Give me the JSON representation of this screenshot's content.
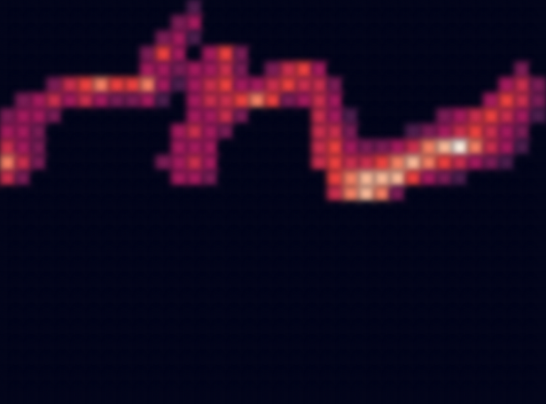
{
  "chart_data": {
    "type": "heatmap",
    "x": [
      0,
      1,
      2,
      3,
      4,
      5,
      6,
      7,
      8,
      9,
      10,
      11,
      12,
      13,
      14,
      15,
      16,
      17,
      18,
      19,
      20,
      21,
      22,
      23,
      24,
      25,
      26,
      27,
      28,
      29,
      30,
      31,
      32,
      33,
      34
    ],
    "y": [
      25,
      24,
      23,
      22,
      21,
      20,
      19,
      18,
      17,
      16,
      15,
      14,
      13,
      12,
      11,
      10,
      9,
      8,
      7,
      6,
      5,
      4,
      3,
      2,
      1,
      0
    ],
    "z": [
      [
        0,
        0,
        0,
        0,
        0,
        0,
        0,
        0,
        0,
        0,
        0,
        0,
        3,
        0,
        0,
        0,
        0,
        0,
        0,
        0,
        0,
        0,
        0,
        0,
        0,
        0,
        0,
        0,
        0,
        0,
        0,
        0,
        0,
        0,
        0
      ],
      [
        0,
        0,
        0,
        0,
        0,
        0,
        0,
        0,
        0,
        0,
        0,
        4,
        5,
        0,
        0,
        0,
        0,
        0,
        0,
        0,
        0,
        0,
        0,
        0,
        0,
        0,
        0,
        0,
        0,
        0,
        0,
        0,
        0,
        0,
        0
      ],
      [
        0,
        0,
        0,
        0,
        0,
        0,
        0,
        0,
        0,
        0,
        4,
        5,
        3,
        0,
        0,
        0,
        0,
        0,
        0,
        0,
        0,
        0,
        0,
        0,
        0,
        0,
        0,
        0,
        0,
        0,
        0,
        0,
        0,
        0,
        0
      ],
      [
        0,
        0,
        0,
        0,
        0,
        0,
        0,
        0,
        0,
        4,
        7,
        5,
        0,
        5,
        7,
        4,
        0,
        0,
        0,
        0,
        0,
        0,
        0,
        0,
        0,
        0,
        0,
        0,
        0,
        0,
        0,
        0,
        0,
        0,
        0
      ],
      [
        0,
        0,
        0,
        0,
        0,
        0,
        0,
        0,
        0,
        5,
        5,
        4,
        5,
        5,
        6,
        4,
        0,
        4,
        6,
        7,
        5,
        0,
        0,
        0,
        0,
        0,
        0,
        0,
        0,
        0,
        0,
        0,
        0,
        4,
        0
      ],
      [
        0,
        0,
        0,
        4,
        6,
        7,
        8,
        7,
        7,
        8,
        5,
        3,
        5,
        6,
        7,
        5,
        5,
        6,
        7,
        6,
        6,
        4,
        0,
        0,
        0,
        0,
        0,
        0,
        0,
        0,
        0,
        0,
        5,
        6,
        4
      ],
      [
        0,
        4,
        5,
        6,
        5,
        6,
        5,
        4,
        4,
        5,
        3,
        0,
        5,
        6,
        6,
        7,
        8,
        7,
        4,
        5,
        6,
        5,
        0,
        0,
        0,
        0,
        0,
        0,
        0,
        0,
        0,
        5,
        7,
        6,
        4
      ],
      [
        4,
        5,
        5,
        4,
        0,
        0,
        0,
        0,
        0,
        0,
        0,
        0,
        5,
        5,
        6,
        4,
        0,
        0,
        0,
        0,
        6,
        5,
        3,
        0,
        0,
        0,
        0,
        0,
        4,
        5,
        6,
        7,
        6,
        5,
        3
      ],
      [
        5,
        5,
        4,
        0,
        0,
        0,
        0,
        0,
        0,
        0,
        0,
        5,
        6,
        5,
        4,
        0,
        0,
        0,
        0,
        0,
        6,
        6,
        4,
        0,
        0,
        0,
        3,
        4,
        5,
        6,
        7,
        6,
        5,
        4,
        0
      ],
      [
        6,
        5,
        4,
        0,
        0,
        0,
        0,
        0,
        0,
        0,
        0,
        5,
        5,
        5,
        0,
        0,
        0,
        0,
        0,
        0,
        6,
        7,
        5,
        4,
        4,
        5,
        6,
        8,
        9,
        10,
        8,
        6,
        5,
        3,
        0
      ],
      [
        8,
        6,
        4,
        0,
        0,
        0,
        0,
        0,
        0,
        0,
        4,
        5,
        6,
        5,
        0,
        0,
        0,
        0,
        0,
        0,
        6,
        7,
        6,
        6,
        7,
        8,
        9,
        8,
        7,
        6,
        5,
        4,
        3,
        0,
        0
      ],
      [
        6,
        4,
        0,
        0,
        0,
        0,
        0,
        0,
        0,
        0,
        0,
        5,
        5,
        4,
        0,
        0,
        0,
        0,
        0,
        0,
        0,
        7,
        8,
        9,
        9,
        9,
        7,
        5,
        4,
        3,
        0,
        0,
        0,
        0,
        0
      ],
      [
        0,
        0,
        0,
        0,
        0,
        0,
        0,
        0,
        0,
        0,
        0,
        0,
        0,
        0,
        0,
        0,
        0,
        0,
        0,
        0,
        0,
        6,
        8,
        9,
        8,
        4,
        0,
        0,
        0,
        0,
        0,
        0,
        0,
        0,
        0
      ],
      [
        0,
        0,
        0,
        0,
        0,
        0,
        0,
        0,
        0,
        0,
        0,
        0,
        0,
        0,
        0,
        0,
        0,
        0,
        0,
        0,
        0,
        0,
        0,
        0,
        0,
        0,
        0,
        0,
        0,
        0,
        0,
        0,
        0,
        0,
        0
      ],
      [
        0,
        0,
        0,
        0,
        0,
        0,
        0,
        0,
        0,
        0,
        0,
        0,
        0,
        0,
        0,
        0,
        0,
        0,
        0,
        0,
        0,
        0,
        0,
        0,
        0,
        0,
        0,
        0,
        0,
        0,
        0,
        0,
        0,
        0,
        0
      ],
      [
        0,
        0,
        0,
        0,
        0,
        0,
        0,
        0,
        0,
        0,
        0,
        0,
        0,
        0,
        0,
        0,
        0,
        0,
        0,
        0,
        0,
        0,
        0,
        0,
        0,
        0,
        0,
        0,
        0,
        0,
        0,
        0,
        0,
        0,
        0
      ],
      [
        0,
        0,
        0,
        0,
        0,
        0,
        0,
        0,
        0,
        0,
        0,
        0,
        0,
        0,
        0,
        0,
        0,
        0,
        0,
        0,
        0,
        0,
        0,
        0,
        0,
        0,
        0,
        0,
        0,
        0,
        0,
        0,
        0,
        0,
        0
      ],
      [
        0,
        0,
        0,
        0,
        0,
        0,
        0,
        0,
        0,
        0,
        0,
        0,
        0,
        0,
        0,
        0,
        0,
        0,
        0,
        0,
        0,
        0,
        0,
        0,
        0,
        0,
        0,
        0,
        0,
        0,
        0,
        0,
        0,
        0,
        0
      ],
      [
        0,
        0,
        0,
        0,
        0,
        0,
        0,
        0,
        0,
        0,
        0,
        0,
        0,
        0,
        0,
        0,
        0,
        0,
        0,
        0,
        0,
        0,
        0,
        0,
        0,
        0,
        0,
        0,
        0,
        0,
        0,
        0,
        0,
        0,
        0
      ],
      [
        0,
        0,
        0,
        0,
        0,
        0,
        0,
        0,
        0,
        0,
        0,
        0,
        0,
        0,
        0,
        0,
        0,
        0,
        0,
        0,
        0,
        0,
        0,
        0,
        0,
        0,
        0,
        0,
        0,
        0,
        0,
        0,
        0,
        0,
        0
      ],
      [
        0,
        0,
        0,
        0,
        0,
        0,
        0,
        0,
        0,
        0,
        0,
        0,
        0,
        0,
        0,
        0,
        0,
        0,
        0,
        0,
        0,
        0,
        0,
        0,
        0,
        0,
        0,
        0,
        0,
        0,
        0,
        0,
        0,
        0,
        0
      ],
      [
        0,
        0,
        0,
        0,
        0,
        0,
        0,
        0,
        0,
        0,
        0,
        0,
        0,
        0,
        0,
        0,
        0,
        0,
        0,
        0,
        0,
        0,
        0,
        0,
        0,
        0,
        0,
        0,
        0,
        0,
        0,
        0,
        0,
        0,
        0
      ],
      [
        0,
        0,
        0,
        0,
        0,
        0,
        0,
        0,
        0,
        0,
        0,
        0,
        0,
        0,
        0,
        0,
        0,
        0,
        0,
        0,
        0,
        0,
        0,
        0,
        0,
        0,
        0,
        0,
        0,
        0,
        0,
        0,
        0,
        0,
        0
      ],
      [
        0,
        0,
        0,
        0,
        0,
        0,
        0,
        0,
        0,
        0,
        0,
        0,
        0,
        0,
        0,
        0,
        0,
        0,
        0,
        0,
        0,
        0,
        0,
        0,
        0,
        0,
        0,
        0,
        0,
        0,
        0,
        0,
        0,
        0,
        0
      ],
      [
        0,
        0,
        0,
        0,
        0,
        0,
        0,
        0,
        0,
        0,
        0,
        0,
        0,
        0,
        0,
        0,
        0,
        0,
        0,
        0,
        0,
        0,
        0,
        0,
        0,
        0,
        0,
        0,
        0,
        0,
        0,
        0,
        0,
        0,
        0
      ],
      [
        0,
        0,
        0,
        0,
        0,
        0,
        0,
        0,
        0,
        0,
        0,
        0,
        0,
        0,
        0,
        0,
        0,
        0,
        0,
        0,
        0,
        0,
        0,
        0,
        0,
        0,
        0,
        0,
        0,
        0,
        0,
        0,
        0,
        0,
        0
      ]
    ],
    "zlim": [
      0,
      10
    ],
    "xlim": [
      -0.5,
      34.5
    ],
    "ylim": [
      -0.5,
      25.5
    ],
    "tick_labels": false,
    "grid": false
  }
}
